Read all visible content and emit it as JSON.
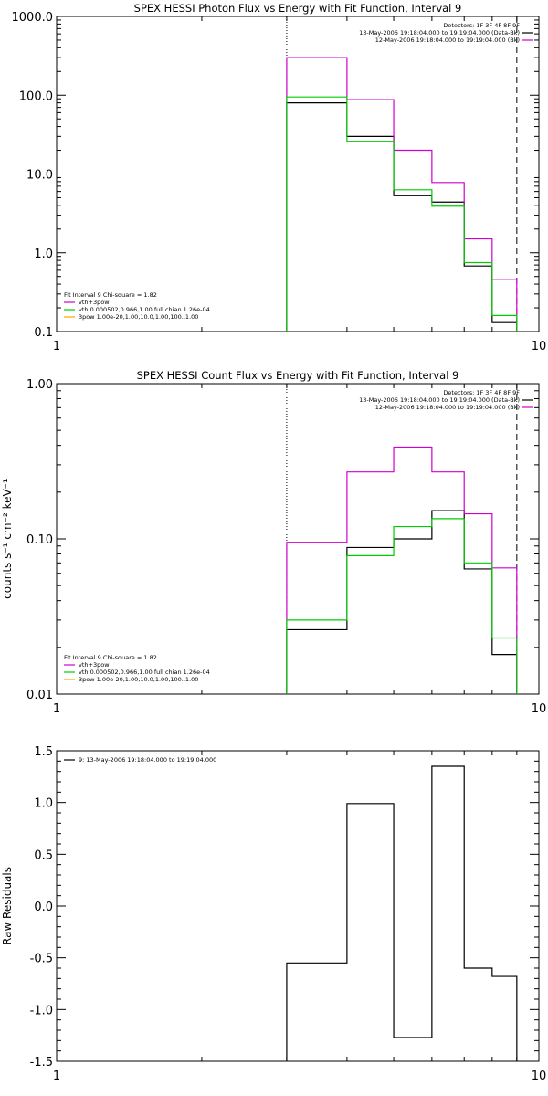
{
  "chart_data": [
    {
      "id": "photon",
      "type": "line",
      "title": "SPEX HESSI Photon Flux vs Energy with Fit Function, Interval 9",
      "xlabel": "",
      "ylabel": "",
      "xscale": "log",
      "yscale": "log",
      "xlim": [
        1,
        10
      ],
      "ylim": [
        0.1,
        1000
      ],
      "xticks": [
        {
          "v": 1,
          "label": "1"
        },
        {
          "v": 10,
          "label": "10"
        }
      ],
      "yticks": [
        {
          "v": 1000,
          "label": "1000.0"
        },
        {
          "v": 100,
          "label": "100.0"
        },
        {
          "v": 10,
          "label": "10.0"
        },
        {
          "v": 1,
          "label": "1.0"
        },
        {
          "v": 0.1,
          "label": "0.1"
        }
      ],
      "bin_edges": [
        3.0,
        4.0,
        5.0,
        6.0,
        7.0,
        8.0,
        9.0
      ],
      "vlines": [
        {
          "x": 3.0,
          "style": "dotted"
        },
        {
          "x": 9.0,
          "style": "dashed"
        }
      ],
      "series": [
        {
          "key": "data",
          "color": "#000000",
          "values": [
            80,
            30,
            5.3,
            4.4,
            0.68,
            0.13
          ]
        },
        {
          "key": "total",
          "color": "#d000d0",
          "values": [
            300,
            88,
            20,
            7.8,
            1.5,
            0.46
          ]
        },
        {
          "key": "vth",
          "color": "#00cc00",
          "values": [
            95,
            26,
            6.3,
            3.9,
            0.75,
            0.16
          ]
        }
      ],
      "legend_top": {
        "placement": "top-right",
        "lines": [
          {
            "text": "Detectors: 1F 3F 4F 8F 9F",
            "color": ""
          },
          {
            "text": "13-May-2006 19:18:04.000 to 19:19:04.000 (Data-Bk)",
            "color": "#000000"
          },
          {
            "text": "12-May-2006 19:18:04.000 to 19:19:04.000 (Bk)",
            "color": "#d000d0"
          }
        ]
      },
      "legend_bottom": {
        "placement": "bottom-left",
        "lines": [
          {
            "text": "Fit Interval 9    Chi-square = 1.82",
            "color": ""
          },
          {
            "text": "vth+3pow",
            "color": "#d000d0"
          },
          {
            "text": "vth 0.000502,0.966,1.00  full chian 1.26e-04",
            "color": "#00cc00"
          },
          {
            "text": "3pow 1.00e-20,1.00,10.0,1.00,100.,1.00",
            "color": "#ffa500"
          }
        ]
      }
    },
    {
      "id": "count",
      "type": "line",
      "title": "SPEX HESSI Count Flux vs Energy with Fit Function, Interval 9",
      "xlabel": "",
      "ylabel": "counts s⁻¹ cm⁻² keV⁻¹",
      "xscale": "log",
      "yscale": "log",
      "xlim": [
        1,
        10
      ],
      "ylim": [
        0.01,
        1.0
      ],
      "xticks": [
        {
          "v": 1,
          "label": "1"
        },
        {
          "v": 10,
          "label": "10"
        }
      ],
      "yticks": [
        {
          "v": 1.0,
          "label": "1.00"
        },
        {
          "v": 0.1,
          "label": "0.10"
        },
        {
          "v": 0.01,
          "label": "0.01"
        }
      ],
      "bin_edges": [
        3.0,
        4.0,
        5.0,
        6.0,
        7.0,
        8.0,
        9.0
      ],
      "vlines": [
        {
          "x": 3.0,
          "style": "dotted"
        },
        {
          "x": 9.0,
          "style": "dashed"
        }
      ],
      "series": [
        {
          "key": "data",
          "color": "#000000",
          "values": [
            0.026,
            0.088,
            0.1,
            0.152,
            0.064,
            0.018
          ]
        },
        {
          "key": "total",
          "color": "#d000d0",
          "values": [
            0.095,
            0.27,
            0.39,
            0.27,
            0.145,
            0.065
          ]
        },
        {
          "key": "vth",
          "color": "#00cc00",
          "values": [
            0.03,
            0.078,
            0.12,
            0.135,
            0.07,
            0.023
          ]
        }
      ],
      "legend_top": {
        "placement": "top-right",
        "lines": [
          {
            "text": "Detectors: 1F 3F 4F 8F 9F",
            "color": ""
          },
          {
            "text": "13-May-2006 19:18:04.000 to 19:19:04.000 (Data-Bk)",
            "color": "#000000"
          },
          {
            "text": "12-May-2006 19:18:04.000 to 19:19:04.000 (Bk)",
            "color": "#d000d0"
          }
        ]
      },
      "legend_bottom": {
        "placement": "bottom-left",
        "lines": [
          {
            "text": "Fit Interval 9    Chi-square = 1.82",
            "color": ""
          },
          {
            "text": "vth+3pow",
            "color": "#d000d0"
          },
          {
            "text": "vth 0.000502,0.966,1.00  full chian 1.26e-04",
            "color": "#00cc00"
          },
          {
            "text": "3pow 1.00e-20,1.00,10.0,1.00,100.,1.00",
            "color": "#ffa500"
          }
        ]
      }
    },
    {
      "id": "resid",
      "type": "line",
      "title": "",
      "xlabel": "",
      "ylabel": "Raw Residuals",
      "xscale": "log",
      "yscale": "linear",
      "xlim": [
        1,
        10
      ],
      "ylim": [
        -1.5,
        1.5
      ],
      "xticks": [
        {
          "v": 1,
          "label": "1"
        },
        {
          "v": 10,
          "label": "10"
        }
      ],
      "yticks": [
        {
          "v": 1.5,
          "label": "1.5"
        },
        {
          "v": 1.0,
          "label": "1.0"
        },
        {
          "v": 0.5,
          "label": "0.5"
        },
        {
          "v": 0.0,
          "label": "0.0"
        },
        {
          "v": -0.5,
          "label": "-0.5"
        },
        {
          "v": -1.0,
          "label": "-1.0"
        },
        {
          "v": -1.5,
          "label": "-1.5"
        }
      ],
      "bin_edges": [
        3.0,
        4.0,
        5.0,
        6.0,
        7.0,
        8.0,
        9.0
      ],
      "vlines": [],
      "series": [
        {
          "key": "residuals",
          "color": "#000000",
          "values": [
            -0.55,
            0.99,
            -1.27,
            1.35,
            -0.6,
            -0.68
          ]
        }
      ],
      "legend_top": {
        "placement": "top-left",
        "lines": [
          {
            "text": "9: 13-May-2006 19:18:04.000 to 19:19:04.000",
            "color": "#000000"
          }
        ]
      },
      "legend_bottom": {
        "placement": "",
        "lines": []
      }
    }
  ]
}
